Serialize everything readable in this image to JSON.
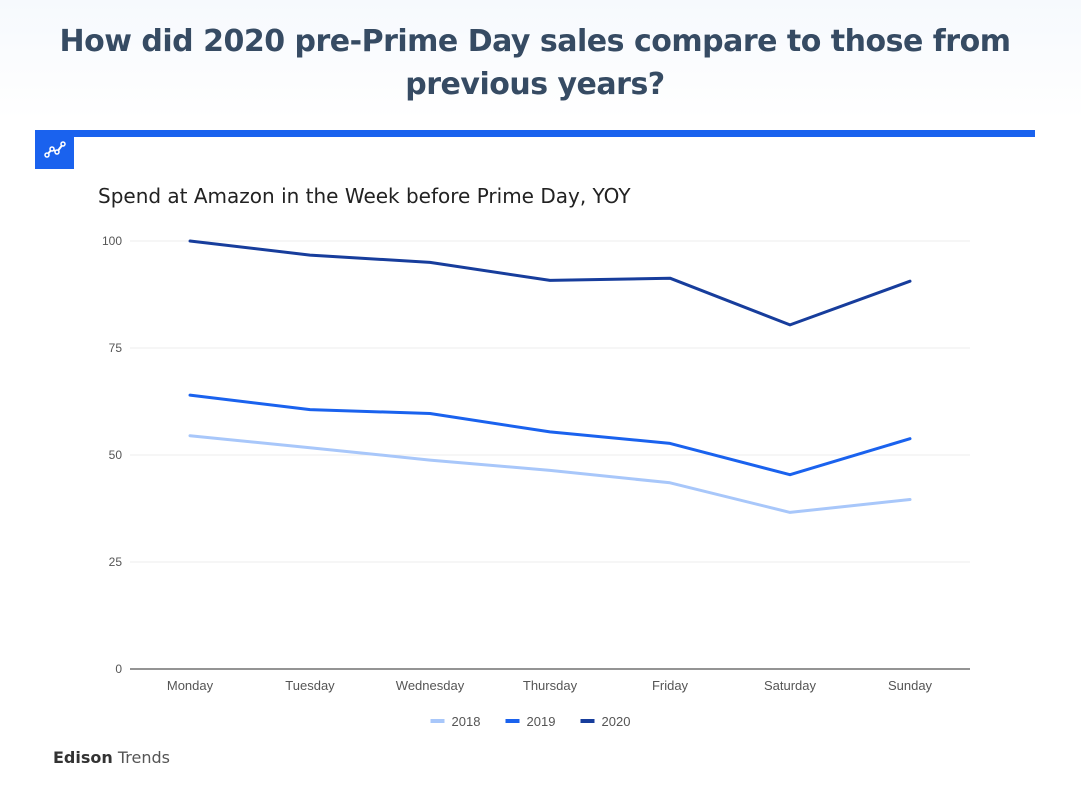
{
  "headline": "How did 2020 pre-Prime Day sales compare to those from previous years?",
  "brand": {
    "name_bold": "Edison",
    "name_light": "Trends"
  },
  "colors": {
    "accent": "#1a62ee",
    "headline": "#364b63"
  },
  "chart_data": {
    "type": "line",
    "title": "Spend at Amazon in the Week before Prime Day, YOY",
    "xlabel": "",
    "ylabel": "",
    "categories": [
      "Monday",
      "Tuesday",
      "Wednesday",
      "Thursday",
      "Friday",
      "Saturday",
      "Sunday"
    ],
    "ylim": [
      0,
      100
    ],
    "yticks": [
      0,
      25,
      50,
      75,
      100
    ],
    "grid": true,
    "legend_position": "bottom",
    "series": [
      {
        "name": "2018",
        "color": "#a8c7fa",
        "values": [
          54.5,
          51.7,
          48.8,
          46.4,
          43.5,
          36.6,
          39.6
        ]
      },
      {
        "name": "2019",
        "color": "#1a62ee",
        "values": [
          64.0,
          60.6,
          59.7,
          55.4,
          52.7,
          45.4,
          53.8
        ]
      },
      {
        "name": "2020",
        "color": "#173d9c",
        "values": [
          100.0,
          96.7,
          95.0,
          90.8,
          91.3,
          80.4,
          90.6
        ]
      }
    ]
  }
}
